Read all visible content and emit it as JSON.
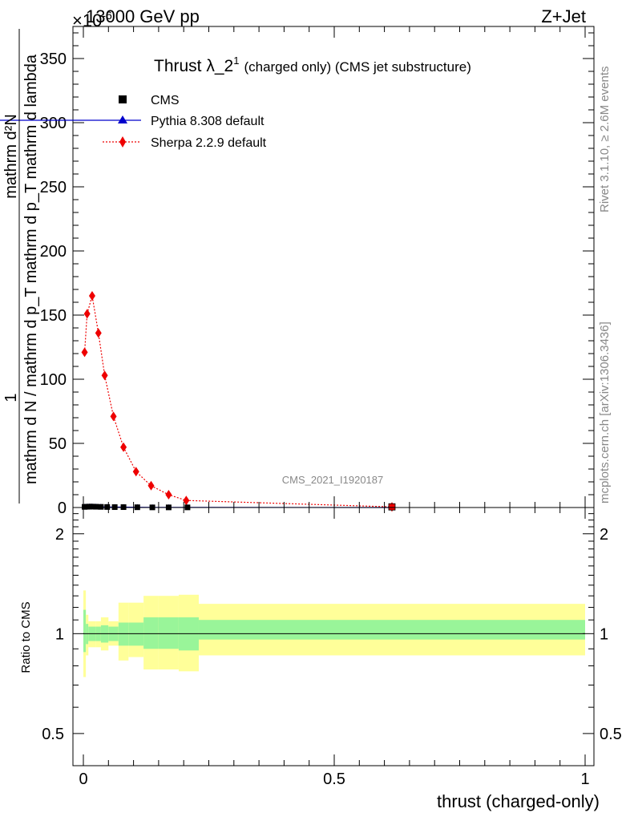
{
  "header": {
    "energy": "13000 GeV pp",
    "process": "Z+Jet",
    "exponent": "×10",
    "exponent_power": "-6"
  },
  "title": {
    "main": "Thrust λ_2",
    "superscript": "1",
    "suffix": "(charged only) (CMS jet substructure)"
  },
  "side_labels": {
    "rivet": "Rivet 3.1.10, ≥ 2.6M events",
    "mcplots": "mcplots.cern.ch [arXiv:1306.3436]"
  },
  "watermark": "CMS_2021_I1920187",
  "axes": {
    "ylabel_top_numerator": "mathrm d²N",
    "ylabel_top_one": "1",
    "ylabel_top_denominator": "mathrm d N / mathrm d p_T mathrm d p_T mathrm d lambda",
    "ylabel_ratio": "Ratio to CMS",
    "xlabel": "thrust (charged-only)",
    "top_ticks": [
      "0",
      "50",
      "100",
      "150",
      "200",
      "250",
      "300",
      "350"
    ],
    "ratio_ticks": [
      "0.5",
      "1",
      "2"
    ],
    "x_ticks": [
      "0",
      "0.5",
      "1"
    ]
  },
  "legend": {
    "cms": "CMS",
    "pythia": "Pythia 8.308 default",
    "sherpa": "Sherpa 2.2.9 default"
  },
  "colors": {
    "cms": "#000000",
    "pythia": "#0000cc",
    "sherpa": "#ee0000",
    "band_inner": "#99f599",
    "band_outer": "#ffff99"
  },
  "chart_data": {
    "type": "line",
    "xlim": [
      0,
      1
    ],
    "ylim": [
      0,
      375
    ],
    "ratio_ylim": [
      0.4,
      2.4
    ],
    "ratio_log": true,
    "cms_points": {
      "x": [
        0.0025,
        0.0075,
        0.0125,
        0.0175,
        0.025,
        0.035,
        0.0475,
        0.0625,
        0.08,
        0.1075,
        0.1375,
        0.17,
        0.2075,
        0.615
      ],
      "y": [
        0.5,
        0.6,
        0.7,
        0.7,
        0.6,
        0.5,
        0.4,
        0.3,
        0.3,
        0.2,
        0.1,
        0.1,
        0.1,
        0.02
      ]
    },
    "pythia_points": {
      "x": [
        0.0025,
        0.0075,
        0.0125,
        0.0175,
        0.025,
        0.035,
        0.0475,
        0.0625,
        0.08,
        0.1075,
        0.1375,
        0.17,
        0.2075,
        0.615
      ],
      "y": [
        0.5,
        0.6,
        0.7,
        0.7,
        0.6,
        0.5,
        0.4,
        0.3,
        0.3,
        0.2,
        0.1,
        0.1,
        0.1,
        0.02
      ]
    },
    "sherpa_points": {
      "x": [
        0.0025,
        0.0075,
        0.0175,
        0.03,
        0.0425,
        0.06,
        0.08,
        0.105,
        0.135,
        0.17,
        0.205,
        0.615
      ],
      "y": [
        121,
        151,
        165,
        136,
        103,
        71,
        47,
        28,
        17,
        10,
        5.5,
        0.5
      ]
    },
    "ratio_bands": {
      "edges": [
        0,
        0.005,
        0.01,
        0.025,
        0.035,
        0.05,
        0.07,
        0.09,
        0.12,
        0.15,
        0.19,
        0.23,
        1.0
      ],
      "inner_low": [
        0.88,
        0.93,
        0.95,
        0.95,
        0.94,
        0.95,
        0.92,
        0.92,
        0.9,
        0.9,
        0.89,
        0.96
      ],
      "inner_high": [
        1.18,
        1.07,
        1.05,
        1.05,
        1.06,
        1.05,
        1.08,
        1.08,
        1.12,
        1.12,
        1.12,
        1.1
      ],
      "outer_low": [
        0.74,
        0.86,
        0.91,
        0.91,
        0.89,
        0.92,
        0.83,
        0.85,
        0.78,
        0.78,
        0.77,
        0.86
      ],
      "outer_high": [
        1.35,
        1.14,
        1.09,
        1.09,
        1.12,
        1.09,
        1.24,
        1.24,
        1.3,
        1.3,
        1.31,
        1.23
      ]
    }
  }
}
